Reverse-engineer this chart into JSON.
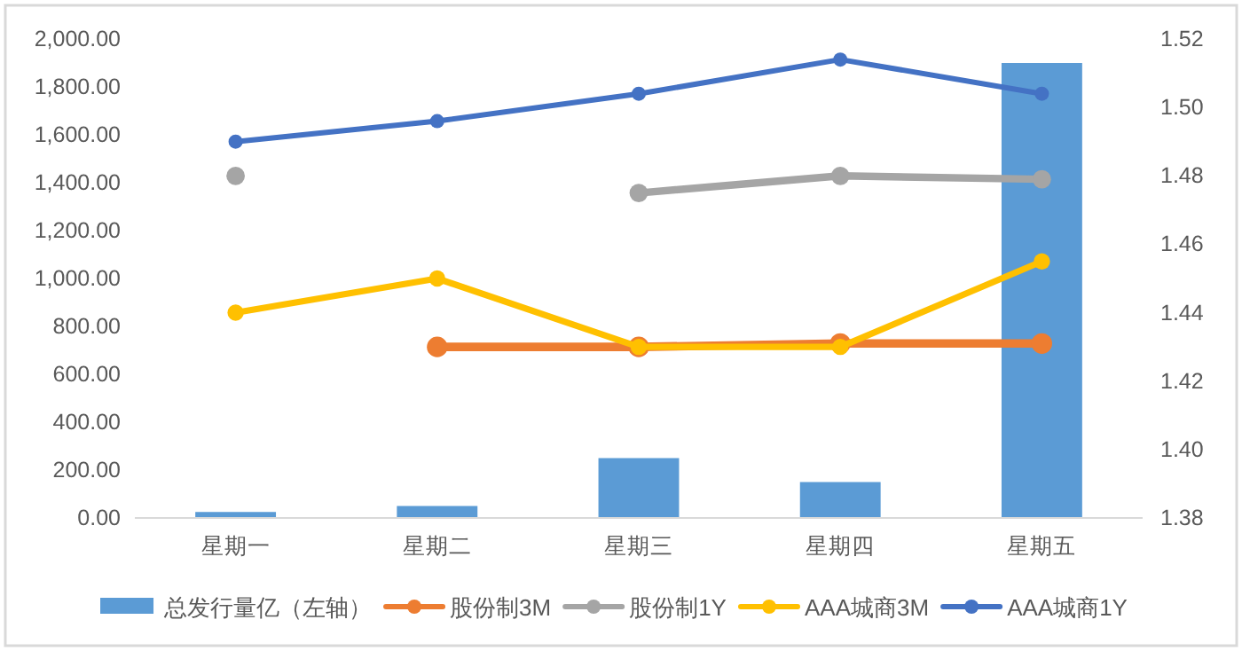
{
  "chart_data": {
    "type": "bar",
    "categories": [
      "星期一",
      "星期二",
      "星期三",
      "星期四",
      "星期五"
    ],
    "series": [
      {
        "name": "总发行量亿（左轴）",
        "color": "#5b9bd5",
        "values": [
          25,
          50,
          250,
          150,
          1900
        ]
      },
      {
        "name": "股份制3M",
        "type": "line",
        "axis": "y2",
        "color": "#ed7d31",
        "values": [
          null,
          1.43,
          1.43,
          1.431,
          1.431
        ]
      },
      {
        "name": "股份制1Y",
        "type": "line",
        "axis": "y2",
        "color": "#a5a5a5",
        "values": [
          1.48,
          null,
          1.475,
          1.48,
          1.479
        ]
      },
      {
        "name": "AAA城商3M",
        "type": "line",
        "axis": "y2",
        "color": "#ffc000",
        "values": [
          1.44,
          1.45,
          1.43,
          1.43,
          1.455
        ]
      },
      {
        "name": "AAA城商1Y",
        "type": "line",
        "axis": "y2",
        "color": "#4472c4",
        "values": [
          1.49,
          1.496,
          1.504,
          1.514,
          1.504
        ]
      }
    ],
    "ylim": [
      0,
      2000
    ],
    "yticks": [
      {
        "value": 0,
        "label": "0.00"
      },
      {
        "value": 200,
        "label": "200.00"
      },
      {
        "value": 400,
        "label": "400.00"
      },
      {
        "value": 600,
        "label": "600.00"
      },
      {
        "value": 800,
        "label": "800.00"
      },
      {
        "value": 1000,
        "label": "1,000.00"
      },
      {
        "value": 1200,
        "label": "1,200.00"
      },
      {
        "value": 1400,
        "label": "1,400.00"
      },
      {
        "value": 1600,
        "label": "1,600.00"
      },
      {
        "value": 1800,
        "label": "1,800.00"
      },
      {
        "value": 2000,
        "label": "2,000.00"
      }
    ],
    "y2lim": [
      1.38,
      1.52
    ],
    "y2ticks": [
      {
        "value": 1.38,
        "label": "1.38"
      },
      {
        "value": 1.4,
        "label": "1.40"
      },
      {
        "value": 1.42,
        "label": "1.42"
      },
      {
        "value": 1.44,
        "label": "1.44"
      },
      {
        "value": 1.46,
        "label": "1.46"
      },
      {
        "value": 1.48,
        "label": "1.48"
      },
      {
        "value": 1.5,
        "label": "1.50"
      },
      {
        "value": 1.52,
        "label": "1.52"
      }
    ],
    "marker": "circle",
    "line_style": "solid",
    "grid": false,
    "legend": "bottom"
  }
}
